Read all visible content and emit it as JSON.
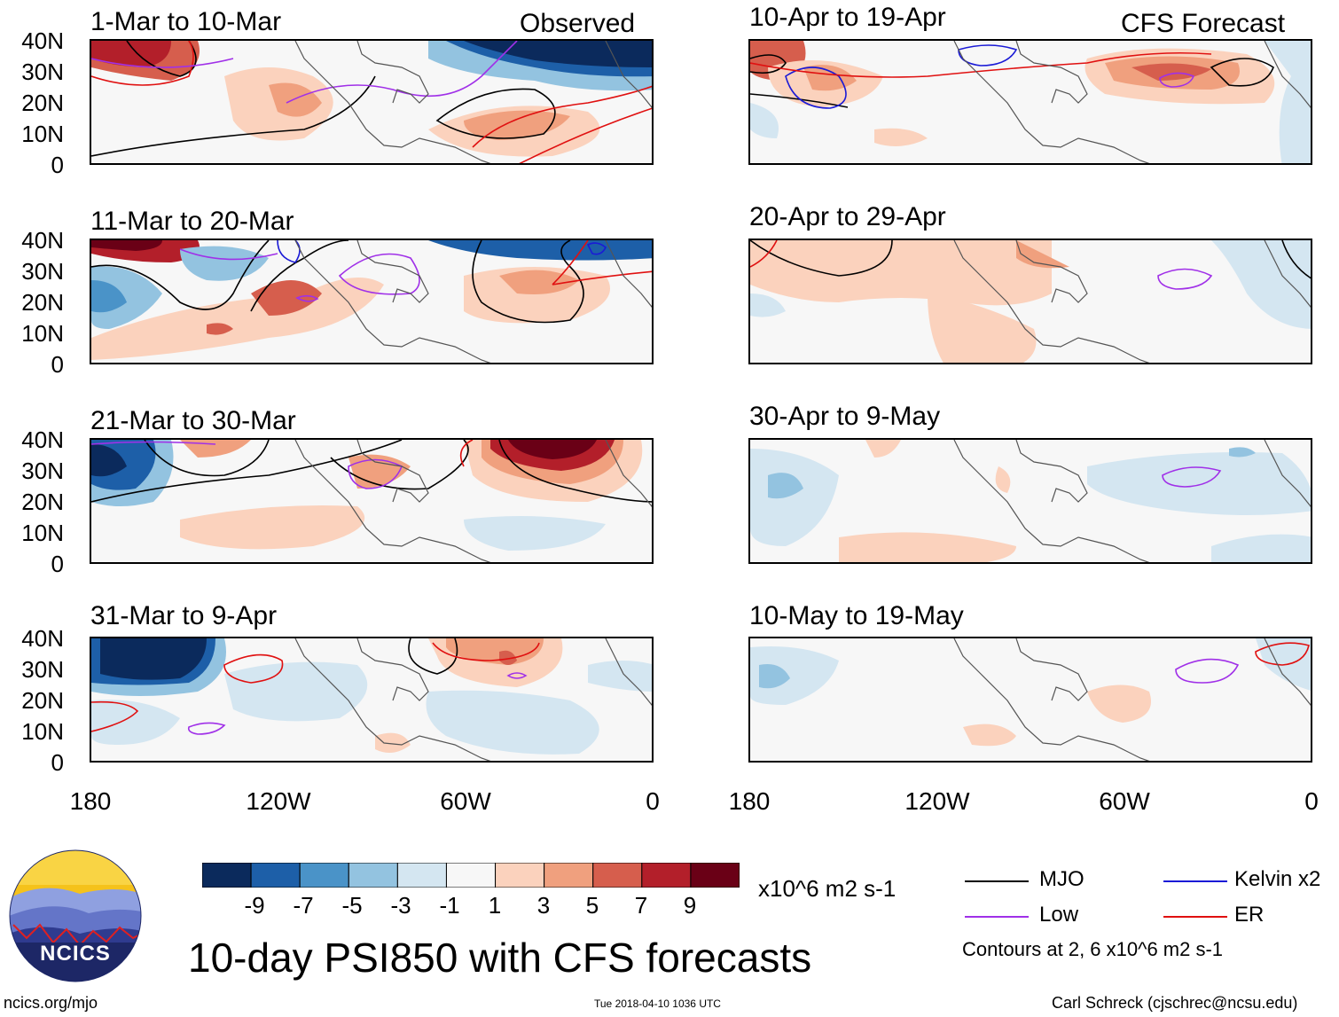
{
  "panels": [
    {
      "title": "1-Mar to 10-Mar",
      "tag": "Observed"
    },
    {
      "title": "10-Apr to 19-Apr",
      "tag": "CFS Forecast"
    },
    {
      "title": "11-Mar to 20-Mar"
    },
    {
      "title": "20-Apr to 29-Apr"
    },
    {
      "title": "21-Mar to 30-Mar"
    },
    {
      "title": "30-Apr to 9-May"
    },
    {
      "title": "31-Mar to 9-Apr"
    },
    {
      "title": "10-May to 19-May"
    }
  ],
  "lat_labels": [
    "40N",
    "30N",
    "20N",
    "10N",
    "0"
  ],
  "lon_labels": [
    "180",
    "120W",
    "60W",
    "0"
  ],
  "colorbar": {
    "colors": [
      "#0b2a5c",
      "#1d5fa8",
      "#4a93c8",
      "#93c3e0",
      "#d4e6f1",
      "#f7f7f7",
      "#fbd2bd",
      "#f0a07e",
      "#d65e4d",
      "#b31f2a",
      "#6a0016"
    ],
    "labels": [
      "-9",
      "-7",
      "-5",
      "-3",
      "-1",
      "1",
      "3",
      "5",
      "7",
      "9"
    ],
    "units": "x10^6 m2 s-1"
  },
  "legend": {
    "items": [
      {
        "label": "MJO",
        "color": "#000000"
      },
      {
        "label": "Kelvin x2",
        "color": "#1a1ad6"
      },
      {
        "label": "Low",
        "color": "#a030e8"
      },
      {
        "label": "ER",
        "color": "#e01010"
      }
    ],
    "note": "Contours at 2, 6 x10^6 m2 s-1"
  },
  "logo": {
    "text": "NCICS"
  },
  "main_title": "10-day PSI850 with CFS forecasts",
  "footer": {
    "left": "ncics.org/mjo",
    "center": "Tue 2018-04-10 1036 UTC",
    "right": "Carl Schreck (cjschrec@ncsu.edu)"
  }
}
